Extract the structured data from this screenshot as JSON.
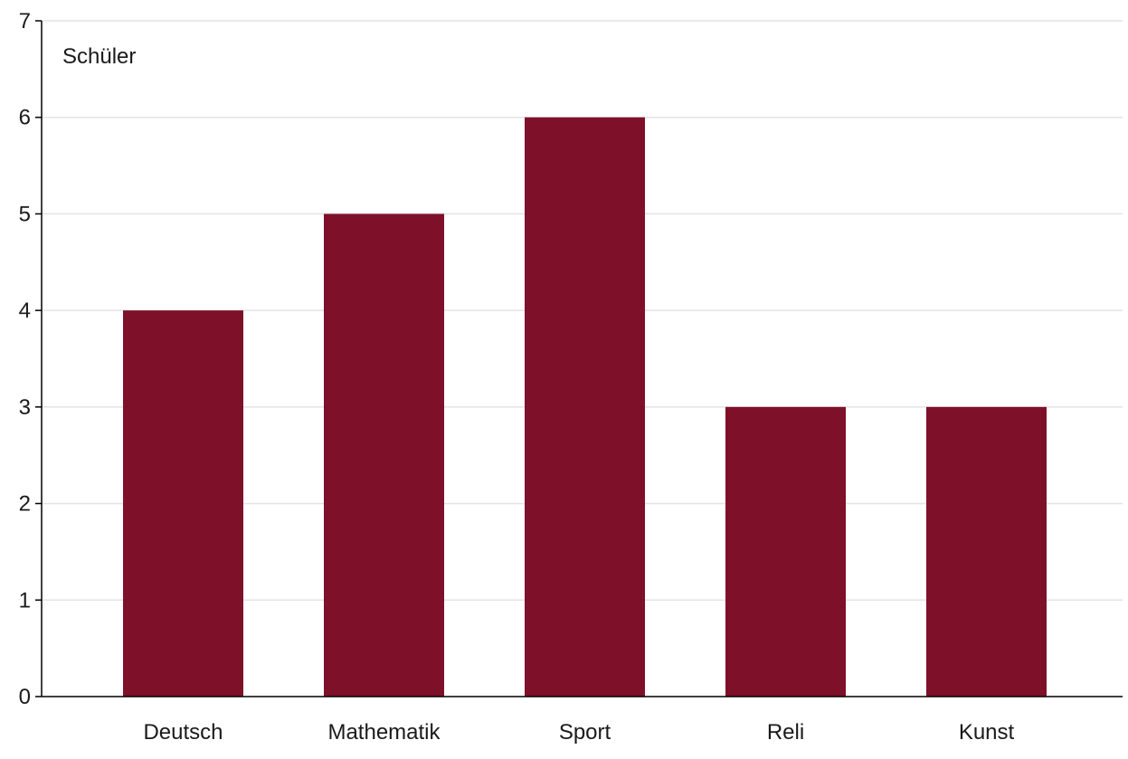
{
  "chart_data": {
    "type": "bar",
    "categories": [
      "Deutsch",
      "Mathematik",
      "Sport",
      "Reli",
      "Kunst"
    ],
    "values": [
      4,
      5,
      6,
      3,
      3
    ],
    "title": "",
    "xlabel": "",
    "ylabel": "Schüler",
    "ylim": [
      0,
      7
    ],
    "yticks": [
      0,
      1,
      2,
      3,
      4,
      5,
      6,
      7
    ],
    "grid": true,
    "legend": "none",
    "bar_color": "#7f1029"
  }
}
